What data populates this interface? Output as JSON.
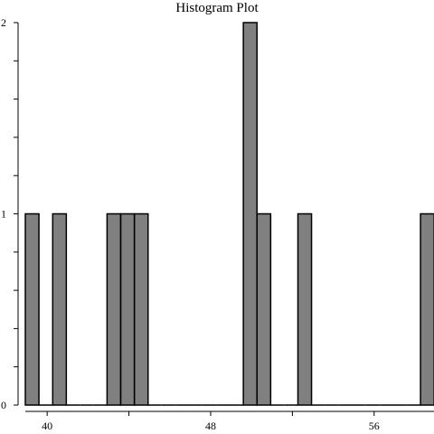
{
  "chart_data": {
    "type": "bar",
    "title": "Histogram Plot",
    "xlabel": "",
    "ylabel": "",
    "bin_width": 0.6667,
    "xlim": [
      38.93,
      58.93
    ],
    "ylim": [
      0,
      2
    ],
    "x_ticks": [
      {
        "value": 40,
        "label": "40"
      },
      {
        "value": 44,
        "label": ""
      },
      {
        "value": 48,
        "label": "48"
      },
      {
        "value": 52,
        "label": ""
      },
      {
        "value": 56,
        "label": "56"
      }
    ],
    "y_ticks": [
      {
        "value": 0,
        "label": "0"
      },
      {
        "value": 0.2,
        "label": ""
      },
      {
        "value": 0.4,
        "label": ""
      },
      {
        "value": 0.6,
        "label": ""
      },
      {
        "value": 0.8,
        "label": ""
      },
      {
        "value": 1,
        "label": "1"
      },
      {
        "value": 1.2,
        "label": ""
      },
      {
        "value": 1.4,
        "label": ""
      },
      {
        "value": 1.6,
        "label": ""
      },
      {
        "value": 1.8,
        "label": ""
      },
      {
        "value": 2,
        "label": "2"
      }
    ],
    "bins": [
      {
        "start": 38.93,
        "count": 1
      },
      {
        "start": 39.6,
        "count": 0
      },
      {
        "start": 40.27,
        "count": 1
      },
      {
        "start": 40.93,
        "count": 0
      },
      {
        "start": 41.6,
        "count": 0
      },
      {
        "start": 42.27,
        "count": 0
      },
      {
        "start": 42.93,
        "count": 1
      },
      {
        "start": 43.6,
        "count": 1
      },
      {
        "start": 44.27,
        "count": 1
      },
      {
        "start": 44.93,
        "count": 0
      },
      {
        "start": 45.6,
        "count": 0
      },
      {
        "start": 46.27,
        "count": 0
      },
      {
        "start": 46.93,
        "count": 0
      },
      {
        "start": 47.6,
        "count": 0
      },
      {
        "start": 48.27,
        "count": 0
      },
      {
        "start": 48.93,
        "count": 0
      },
      {
        "start": 49.6,
        "count": 2
      },
      {
        "start": 50.27,
        "count": 1
      },
      {
        "start": 50.93,
        "count": 0
      },
      {
        "start": 51.6,
        "count": 0
      },
      {
        "start": 52.27,
        "count": 1
      },
      {
        "start": 52.93,
        "count": 0
      },
      {
        "start": 53.6,
        "count": 0
      },
      {
        "start": 54.27,
        "count": 0
      },
      {
        "start": 54.93,
        "count": 0
      },
      {
        "start": 55.6,
        "count": 0
      },
      {
        "start": 56.27,
        "count": 0
      },
      {
        "start": 56.93,
        "count": 0
      },
      {
        "start": 57.6,
        "count": 0
      },
      {
        "start": 58.27,
        "count": 1
      }
    ],
    "grid": false,
    "legend": "none",
    "colors": {
      "bar_fill": "#808080",
      "bar_stroke": "#000000"
    }
  }
}
